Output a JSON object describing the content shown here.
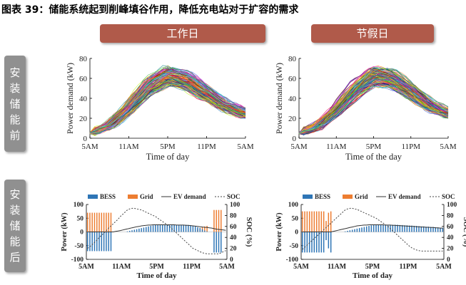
{
  "figure_title": "图表 39：储能系统起到削峰填谷作用，降低充电站对于扩容的需求",
  "column_headers": [
    "工作日",
    "节假日"
  ],
  "row_headers": [
    "安装储能前",
    "安装储能后"
  ],
  "colors": {
    "bess": "#2e75b6",
    "grid": "#ed7d31",
    "ev": "#333333",
    "soc": "#444444",
    "header_col": "#b05a4a",
    "header_row": "#909090"
  },
  "chart_data": [
    {
      "type": "line",
      "xlabel": "Time of day",
      "ylabel": "Power demand (kW)",
      "x_ticks": [
        "5AM",
        "11AM",
        "5PM",
        "11PM",
        "5AM"
      ],
      "x": [
        0,
        3,
        6,
        9,
        12,
        15,
        18,
        21,
        24
      ],
      "ylim": [
        0,
        80
      ],
      "y_ticks": [
        0,
        20,
        40,
        60,
        80
      ],
      "series_count": 150,
      "mean_values": [
        5,
        13,
        30,
        52,
        63,
        58,
        45,
        32,
        25
      ]
    },
    {
      "type": "line",
      "xlabel": "Time of the day",
      "ylabel": "Power demand (kW)",
      "x_ticks": [
        "5AM",
        "11AM",
        "5PM",
        "11PM",
        "5AM"
      ],
      "x": [
        0,
        3,
        6,
        9,
        12,
        15,
        18,
        21,
        24
      ],
      "ylim": [
        0,
        80
      ],
      "y_ticks": [
        0,
        20,
        40,
        60,
        80
      ],
      "series_count": 150,
      "mean_values": [
        5,
        12,
        27,
        48,
        62,
        60,
        47,
        33,
        25
      ]
    },
    {
      "type": "bar",
      "xlabel": "Time of day",
      "ylabel": "Power (kW)",
      "y2label": "SOC (%)",
      "x_ticks": [
        "5AM",
        "11AM",
        "5PM",
        "11PM",
        "5AM"
      ],
      "ylim": [
        -100,
        100
      ],
      "y_ticks": [
        -100,
        -50,
        0,
        50,
        100
      ],
      "y2lim": [
        0,
        100
      ],
      "y2_ticks": [
        0,
        20,
        40,
        60,
        80,
        100
      ],
      "legend": [
        "BESS",
        "Grid",
        "EV demand",
        "SOC"
      ],
      "legend_position": "top",
      "series": [
        {
          "name": "BESS",
          "values": [
            -70,
            -70,
            -70,
            -70,
            -70,
            -70,
            -70,
            -70,
            -70,
            -70,
            -70,
            0,
            0,
            0,
            0,
            0,
            0,
            2,
            4,
            6,
            8,
            10,
            12,
            14,
            16,
            18,
            20,
            22,
            24,
            25,
            25,
            26,
            26,
            26,
            26,
            26,
            26,
            26,
            26,
            26,
            26,
            26,
            26,
            25,
            24,
            22,
            20,
            17,
            14,
            10,
            5,
            2,
            0,
            0,
            -75,
            -75,
            -75,
            -75,
            0,
            0
          ]
        },
        {
          "name": "Grid",
          "values": [
            70,
            70,
            70,
            70,
            70,
            70,
            70,
            70,
            70,
            70,
            70,
            0,
            0,
            0,
            0,
            0,
            0,
            0,
            0,
            0,
            0,
            0,
            0,
            0,
            0,
            0,
            0,
            0,
            0,
            0,
            0,
            0,
            0,
            0,
            0,
            0,
            0,
            0,
            0,
            0,
            0,
            0,
            0,
            0,
            0,
            0,
            0,
            10,
            15,
            18,
            20,
            22,
            0,
            0,
            80,
            80,
            80,
            80,
            0,
            0
          ]
        },
        {
          "name": "EV demand",
          "values": [
            0,
            0,
            0,
            0,
            0,
            0,
            0,
            0,
            0,
            0,
            0,
            0,
            2,
            3,
            5,
            7,
            9,
            11,
            13,
            15,
            17,
            19,
            20,
            22,
            23,
            24,
            25,
            25,
            26,
            26,
            26,
            26,
            26,
            26,
            26,
            26,
            26,
            26,
            25,
            25,
            25,
            25,
            24,
            24,
            23,
            22,
            21,
            20,
            19,
            18,
            17,
            16,
            15,
            14,
            12,
            10,
            9,
            8,
            7,
            6
          ]
        },
        {
          "name": "SOC",
          "values": [
            20,
            23,
            27,
            31,
            35,
            40,
            44,
            48,
            52,
            57,
            61,
            65,
            69,
            73,
            78,
            82,
            86,
            90,
            92,
            93,
            93,
            92,
            91,
            90,
            88,
            86,
            84,
            82,
            80,
            78,
            75,
            72,
            69,
            66,
            63,
            60,
            56,
            52,
            48,
            44,
            40,
            36,
            32,
            28,
            24,
            20,
            18,
            16,
            14,
            12,
            11,
            10,
            10,
            10,
            10,
            10,
            10,
            12,
            14,
            16
          ]
        }
      ]
    },
    {
      "type": "bar",
      "xlabel": "Time of day",
      "ylabel": "Power (kW)",
      "y2label": "SOC (%)",
      "x_ticks": [
        "5AM",
        "11AM",
        "5PM",
        "11PM",
        "5AM"
      ],
      "ylim": [
        -100,
        100
      ],
      "y_ticks": [
        -100,
        -50,
        0,
        50,
        100
      ],
      "y2lim": [
        0,
        100
      ],
      "y2_ticks": [
        0,
        20,
        40,
        60,
        80,
        100
      ],
      "legend": [
        "BESS",
        "Grid",
        "EV demand",
        "SOC"
      ],
      "legend_position": "top",
      "series": [
        {
          "name": "BESS",
          "values": [
            -75,
            -75,
            -75,
            -75,
            -75,
            -75,
            -75,
            -75,
            -75,
            -75,
            -30,
            -60,
            -75,
            0,
            0,
            0,
            0,
            0,
            2,
            4,
            6,
            8,
            10,
            12,
            14,
            16,
            18,
            20,
            22,
            24,
            25,
            26,
            26,
            26,
            26,
            26,
            26,
            26,
            26,
            26,
            26,
            25,
            25,
            24,
            24,
            23,
            23,
            22,
            22,
            21,
            20,
            20,
            19,
            19,
            18,
            18,
            17,
            16,
            15,
            15
          ]
        },
        {
          "name": "Grid",
          "values": [
            75,
            75,
            75,
            75,
            75,
            75,
            75,
            75,
            75,
            75,
            40,
            70,
            75,
            0,
            0,
            0,
            0,
            0,
            0,
            0,
            0,
            0,
            0,
            0,
            0,
            0,
            0,
            0,
            0,
            0,
            0,
            0,
            0,
            0,
            0,
            0,
            0,
            0,
            0,
            0,
            0,
            0,
            0,
            0,
            0,
            0,
            0,
            0,
            0,
            0,
            0,
            0,
            0,
            0,
            0,
            0,
            0,
            0,
            0,
            0
          ]
        },
        {
          "name": "EV demand",
          "values": [
            0,
            0,
            0,
            0,
            0,
            0,
            0,
            0,
            0,
            0,
            0,
            0,
            0,
            2,
            4,
            6,
            8,
            10,
            12,
            14,
            16,
            18,
            20,
            22,
            23,
            24,
            25,
            25,
            26,
            26,
            26,
            26,
            26,
            26,
            26,
            25,
            25,
            25,
            24,
            24,
            23,
            23,
            22,
            22,
            21,
            21,
            20,
            20,
            19,
            19,
            18,
            18,
            17,
            17,
            16,
            16,
            15,
            15,
            14,
            14
          ]
        },
        {
          "name": "SOC",
          "values": [
            18,
            22,
            26,
            30,
            34,
            38,
            42,
            46,
            50,
            54,
            58,
            62,
            66,
            70,
            74,
            78,
            82,
            86,
            90,
            92,
            93,
            93,
            92,
            91,
            89,
            87,
            85,
            83,
            81,
            79,
            77,
            75,
            72,
            69,
            66,
            63,
            60,
            56,
            52,
            48,
            44,
            40,
            36,
            32,
            28,
            24,
            21,
            19,
            17,
            16,
            15,
            15,
            15,
            15,
            15,
            15,
            15,
            15,
            15,
            15
          ]
        }
      ]
    }
  ]
}
